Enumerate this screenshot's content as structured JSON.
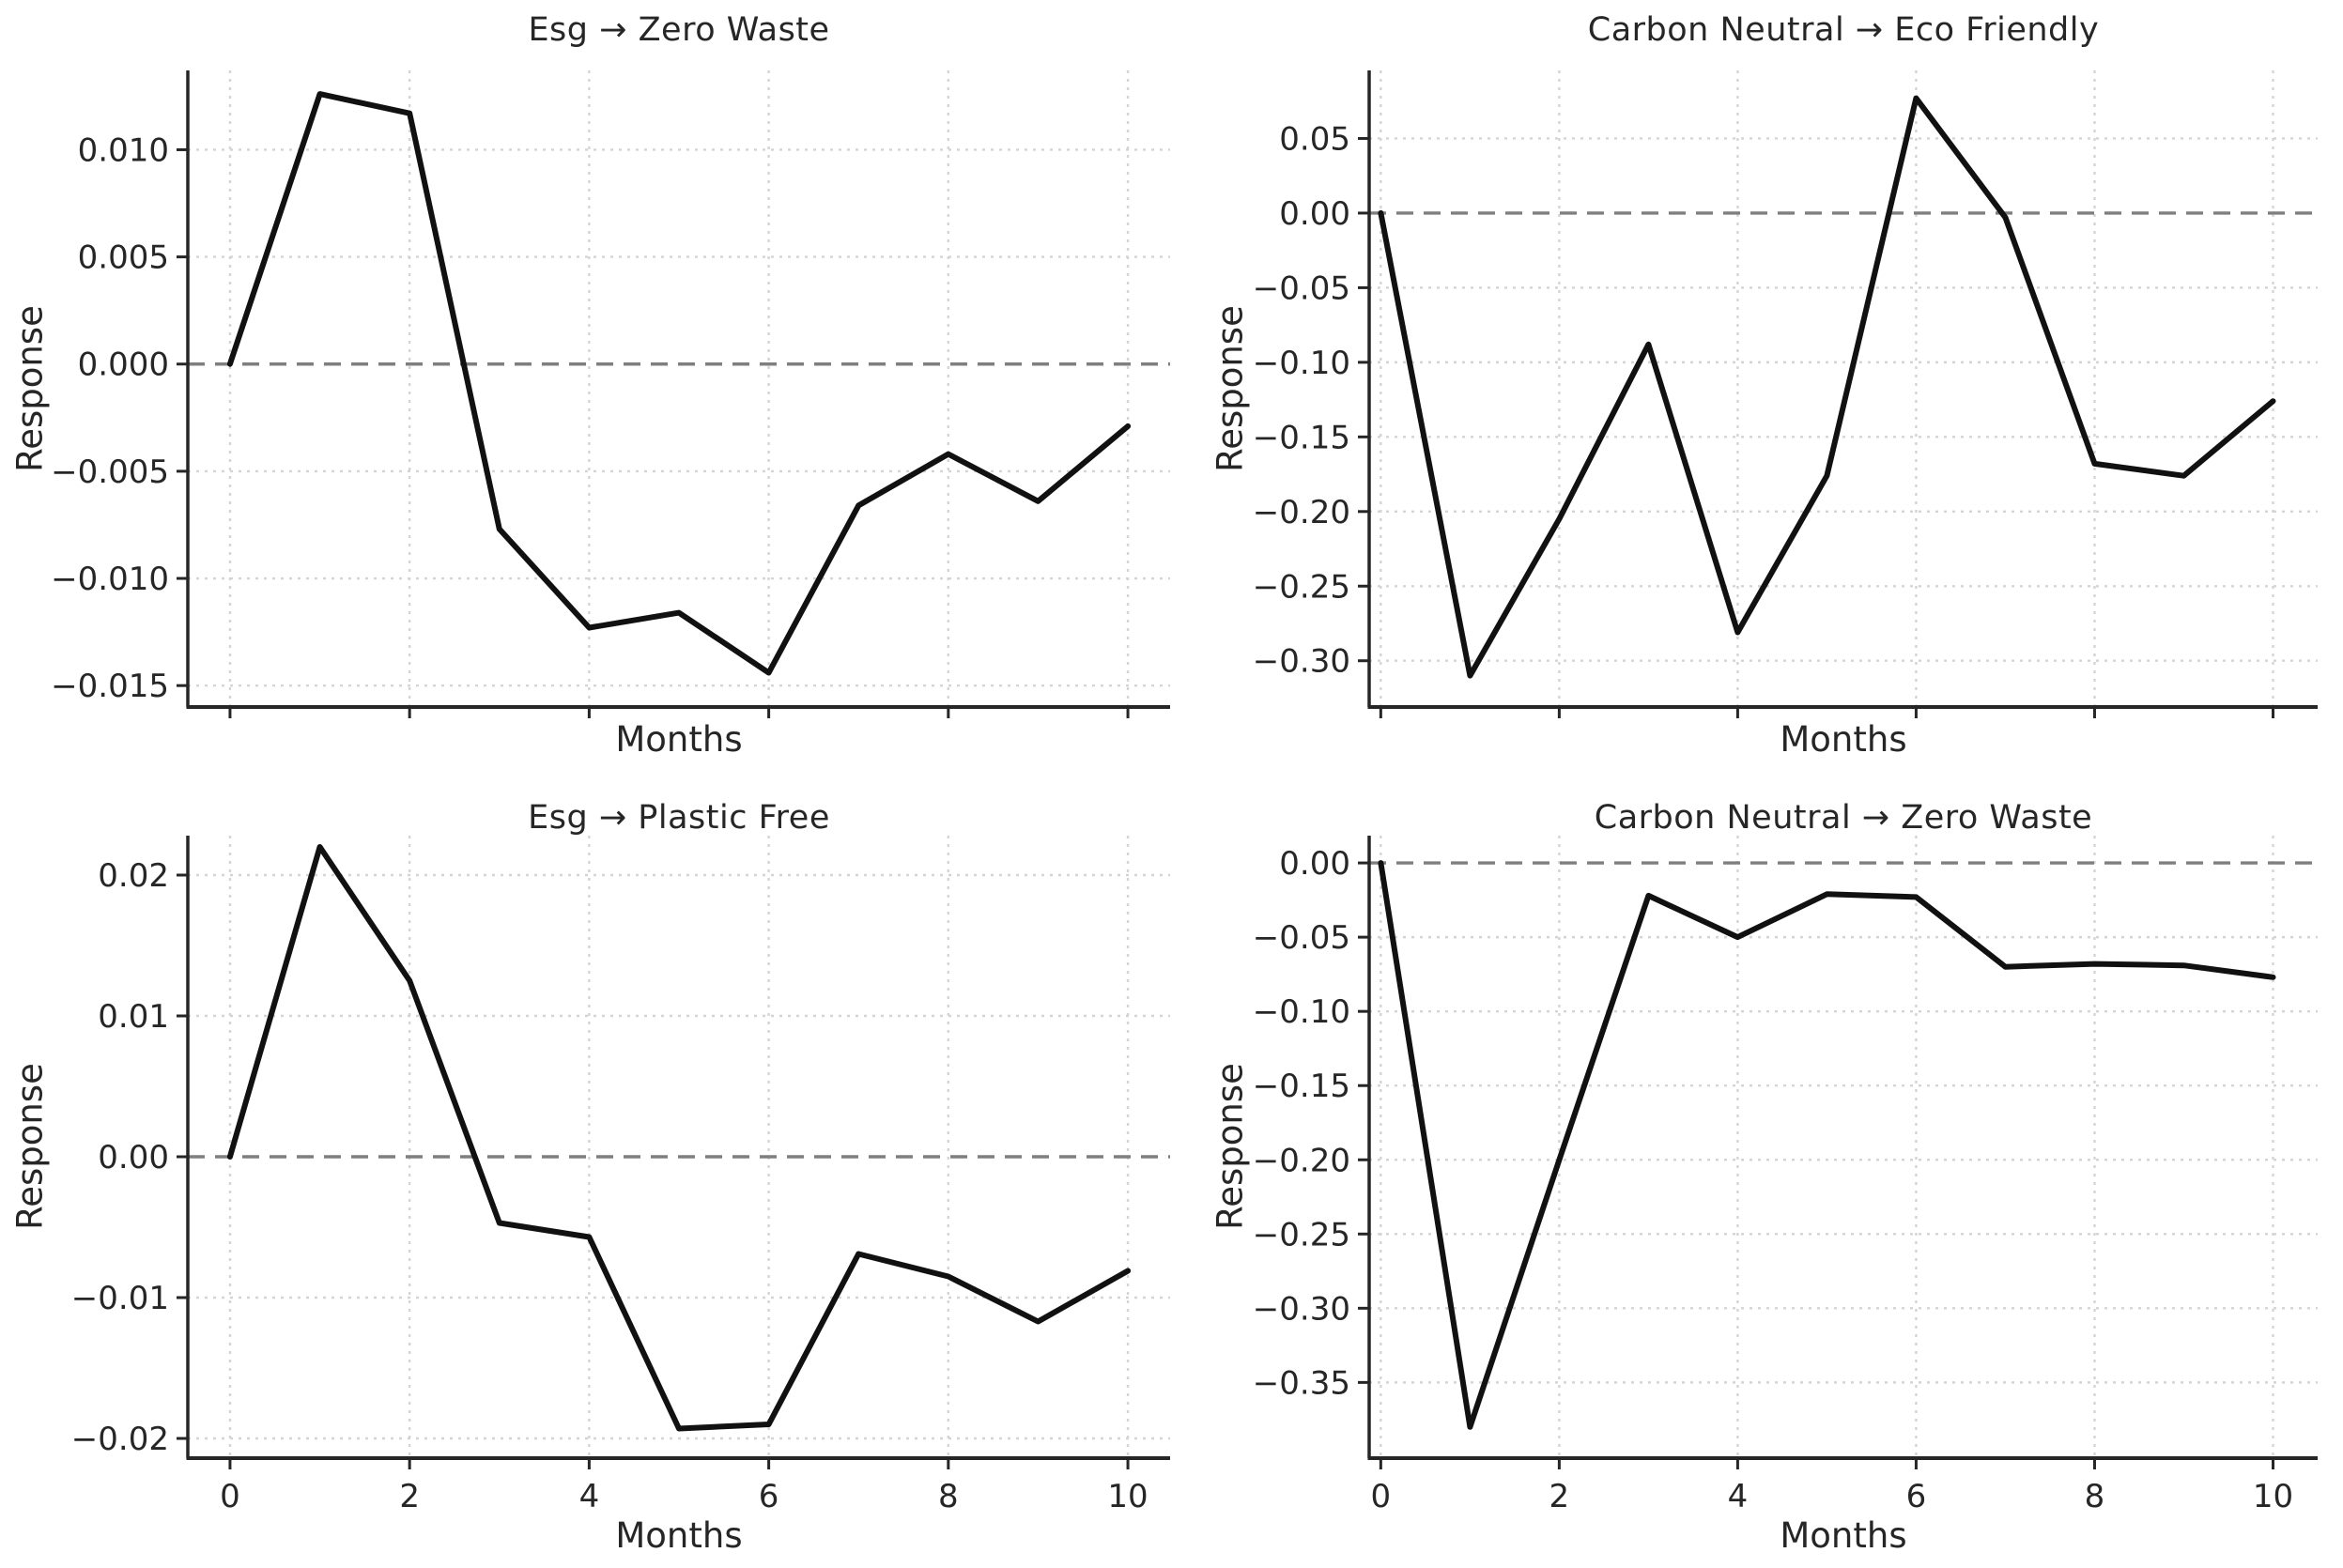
{
  "figure": {
    "background": "#ffffff",
    "line_color": "#111111",
    "zero_line_color": "#7f7f7f",
    "grid_color": "#d4d4d4",
    "spine_color": "#262626",
    "text_color": "#262626"
  },
  "chart_data": [
    {
      "type": "line",
      "position": "top-left",
      "title": "Esg → Zero Waste",
      "xlabel": "Months",
      "ylabel": "Response",
      "x": [
        0,
        1,
        2,
        3,
        4,
        5,
        6,
        7,
        8,
        9,
        10
      ],
      "values": [
        0.0,
        0.0126,
        0.0117,
        -0.0077,
        -0.0123,
        -0.0116,
        -0.0144,
        -0.0066,
        -0.0042,
        -0.0064,
        -0.0029
      ],
      "xlim": [
        -0.47,
        10.47
      ],
      "ylim": [
        -0.016,
        0.0137
      ],
      "yticks": [
        0.01,
        0.005,
        0.0,
        -0.005,
        -0.01,
        -0.015
      ],
      "ytick_labels": [
        "0.010",
        "0.005",
        "0.000",
        "−0.005",
        "−0.010",
        "−0.015"
      ],
      "xticks": [
        0,
        2,
        4,
        6,
        8,
        10
      ],
      "xtick_labels": [],
      "grid": true,
      "zero_line": true,
      "legend": "none"
    },
    {
      "type": "line",
      "position": "top-right",
      "title": "Carbon Neutral → Eco Friendly",
      "xlabel": "Months",
      "ylabel": "Response",
      "x": [
        0,
        1,
        2,
        3,
        4,
        5,
        6,
        7,
        8,
        9,
        10
      ],
      "values": [
        0.0,
        -0.31,
        -0.205,
        -0.088,
        -0.281,
        -0.176,
        0.077,
        -0.003,
        -0.168,
        -0.176,
        -0.126
      ],
      "xlim": [
        -0.13,
        10.5
      ],
      "ylim": [
        -0.331,
        0.0956
      ],
      "yticks": [
        0.05,
        0.0,
        -0.05,
        -0.1,
        -0.15,
        -0.2,
        -0.25,
        -0.3
      ],
      "ytick_labels": [
        "0.05",
        "0.00",
        "−0.05",
        "−0.10",
        "−0.15",
        "−0.20",
        "−0.25",
        "−0.30"
      ],
      "xticks": [
        0,
        2,
        4,
        6,
        8,
        10
      ],
      "xtick_labels": [],
      "grid": true,
      "zero_line": true,
      "legend": "none"
    },
    {
      "type": "line",
      "position": "bottom-left",
      "title": "Esg → Plastic Free",
      "xlabel": "Months",
      "ylabel": "Response",
      "x": [
        0,
        1,
        2,
        3,
        4,
        5,
        6,
        7,
        8,
        9,
        10
      ],
      "values": [
        0.0,
        0.022,
        0.0125,
        -0.0047,
        -0.0057,
        -0.0193,
        -0.019,
        -0.0069,
        -0.0085,
        -0.0117,
        -0.0081
      ],
      "xlim": [
        -0.47,
        10.47
      ],
      "ylim": [
        -0.0214,
        0.0228
      ],
      "yticks": [
        0.02,
        0.01,
        0.0,
        -0.01,
        -0.02
      ],
      "ytick_labels": [
        "0.02",
        "0.01",
        "0.00",
        "−0.01",
        "−0.02"
      ],
      "xticks": [
        0,
        2,
        4,
        6,
        8,
        10
      ],
      "xtick_labels": [
        "0",
        "2",
        "4",
        "6",
        "8",
        "10"
      ],
      "grid": true,
      "zero_line": true,
      "legend": "none"
    },
    {
      "type": "line",
      "position": "bottom-right",
      "title": "Carbon Neutral → Zero Waste",
      "xlabel": "Months",
      "ylabel": "Response",
      "x": [
        0,
        1,
        2,
        3,
        4,
        5,
        6,
        7,
        8,
        9,
        10
      ],
      "values": [
        0.0,
        -0.38,
        -0.2,
        -0.022,
        -0.05,
        -0.021,
        -0.023,
        -0.07,
        -0.068,
        -0.069,
        -0.077
      ],
      "xlim": [
        -0.13,
        10.5
      ],
      "ylim": [
        -0.401,
        0.0184
      ],
      "yticks": [
        0.0,
        -0.05,
        -0.1,
        -0.15,
        -0.2,
        -0.25,
        -0.3,
        -0.35
      ],
      "ytick_labels": [
        "0.00",
        "−0.05",
        "−0.10",
        "−0.15",
        "−0.20",
        "−0.25",
        "−0.30",
        "−0.35"
      ],
      "xticks": [
        0,
        2,
        4,
        6,
        8,
        10
      ],
      "xtick_labels": [
        "0",
        "2",
        "4",
        "6",
        "8",
        "10"
      ],
      "grid": true,
      "zero_line": true,
      "legend": "none"
    }
  ]
}
